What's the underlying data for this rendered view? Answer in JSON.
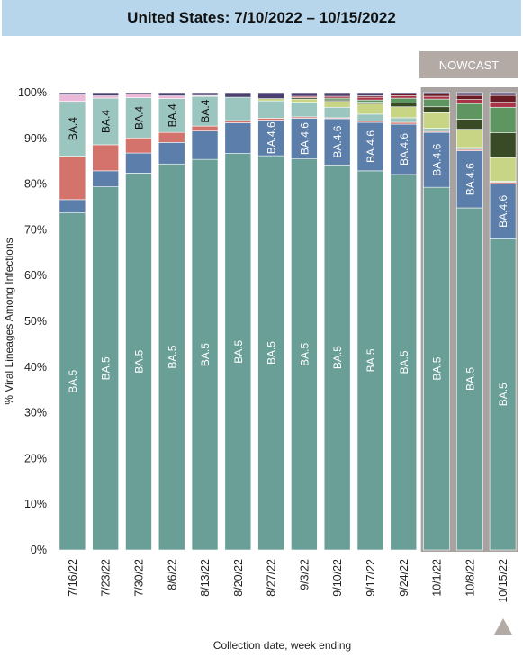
{
  "title": "United States: 7/10/2022 – 10/15/2022",
  "nowcast_label": "NOWCAST",
  "play_icon": "triangle-up-icon",
  "chart_data": {
    "type": "bar",
    "stacked": true,
    "ylabel": "% Viral Lineages Among Infections",
    "xlabel": "Collection date, week ending",
    "ylim": [
      0,
      100
    ],
    "yticks": [
      "0%",
      "10%",
      "20%",
      "30%",
      "40%",
      "50%",
      "60%",
      "70%",
      "80%",
      "90%",
      "100%"
    ],
    "categories": [
      "7/16/22",
      "7/23/22",
      "7/30/22",
      "8/6/22",
      "8/13/22",
      "8/20/22",
      "8/27/22",
      "9/3/22",
      "9/10/22",
      "9/17/22",
      "9/24/22",
      "10/1/22",
      "10/8/22",
      "10/15/22"
    ],
    "nowcast_categories": [
      "10/1/22",
      "10/8/22",
      "10/15/22"
    ],
    "series": [
      {
        "name": "BA.5",
        "color": "#6a9f98",
        "values": [
          73.7,
          79.4,
          82.4,
          84.4,
          85.4,
          86.7,
          86.2,
          85.5,
          84.2,
          82.9,
          82.1,
          79.3,
          74.8,
          68.0
        ]
      },
      {
        "name": "BA.4.6",
        "color": "#5b7eaa",
        "values": [
          2.9,
          3.5,
          4.4,
          4.7,
          6.2,
          6.7,
          7.8,
          8.9,
          10.1,
          10.6,
          11.0,
          12.0,
          12.5,
          12.1
        ]
      },
      {
        "name": "",
        "color": "#d4736b",
        "values": [
          9.5,
          5.7,
          3.3,
          2.2,
          1.1,
          0.5,
          0.4,
          0.3,
          0.2,
          0.3,
          0.4,
          0.2,
          0.3,
          0.3
        ]
      },
      {
        "name": "BA.4",
        "color": "#9bc5bf",
        "values": [
          12.0,
          10.2,
          8.8,
          7.4,
          6.5,
          5.1,
          3.8,
          3.2,
          2.3,
          1.5,
          1.0,
          0.7,
          0.4,
          0.2
        ]
      },
      {
        "name": "",
        "color": "#ecbad8",
        "values": [
          1.4,
          0.5,
          0.8,
          0.6,
          0.2,
          0.0,
          0.0,
          0.0,
          0.0,
          0.0,
          0.0,
          0.0,
          0.0,
          0.0
        ]
      },
      {
        "name": "",
        "color": "#c8d585",
        "values": [
          0.0,
          0.0,
          0.0,
          0.0,
          0.0,
          0.0,
          0.5,
          0.7,
          1.3,
          2.2,
          2.4,
          3.4,
          4.0,
          5.2
        ]
      },
      {
        "name": "",
        "color": "#384a26",
        "values": [
          0.0,
          0.0,
          0.0,
          0.0,
          0.0,
          0.0,
          0.0,
          0.3,
          0.3,
          0.4,
          0.8,
          1.3,
          2.2,
          5.4
        ]
      },
      {
        "name": "",
        "color": "#5e9560",
        "values": [
          0.0,
          0.0,
          0.0,
          0.0,
          0.0,
          0.0,
          0.0,
          0.0,
          0.4,
          0.5,
          1.1,
          1.7,
          3.4,
          5.6
        ]
      },
      {
        "name": "",
        "color": "#a93347",
        "values": [
          0.0,
          0.0,
          0.0,
          0.0,
          0.0,
          0.0,
          0.0,
          0.3,
          0.4,
          0.6,
          0.5,
          0.6,
          0.9,
          1.1
        ]
      },
      {
        "name": "",
        "color": "#6a1c24",
        "values": [
          0.0,
          0.0,
          0.0,
          0.0,
          0.0,
          0.0,
          0.0,
          0.0,
          0.0,
          0.3,
          0.4,
          0.5,
          0.9,
          1.5
        ]
      },
      {
        "name": "",
        "color": "#4a3f6e",
        "values": [
          0.5,
          0.7,
          0.3,
          0.7,
          0.6,
          1.0,
          1.3,
          0.8,
          0.8,
          0.7,
          0.3,
          0.3,
          0.6,
          0.6
        ]
      }
    ],
    "bar_labels": [
      [
        "BA.5",
        "",
        "",
        "BA.4"
      ],
      [
        "BA.5",
        "",
        "",
        "BA.4"
      ],
      [
        "BA.5",
        "",
        "",
        "BA.4"
      ],
      [
        "BA.5",
        "",
        "",
        "BA.4"
      ],
      [
        "BA.5",
        "",
        "",
        "BA.4"
      ],
      [
        "BA.5",
        "",
        "",
        ""
      ],
      [
        "BA.5",
        "BA.4.6",
        "",
        ""
      ],
      [
        "BA.5",
        "BA.4.6",
        "",
        ""
      ],
      [
        "BA.5",
        "BA.4.6",
        "",
        ""
      ],
      [
        "BA.5",
        "BA.4.6",
        "",
        ""
      ],
      [
        "BA.5",
        "BA.4.6",
        "",
        ""
      ],
      [
        "BA.5",
        "BA.4.6",
        "",
        ""
      ],
      [
        "BA.5",
        "BA.4.6",
        "",
        ""
      ],
      [
        "BA.5",
        "BA.4.6",
        "",
        ""
      ]
    ]
  }
}
